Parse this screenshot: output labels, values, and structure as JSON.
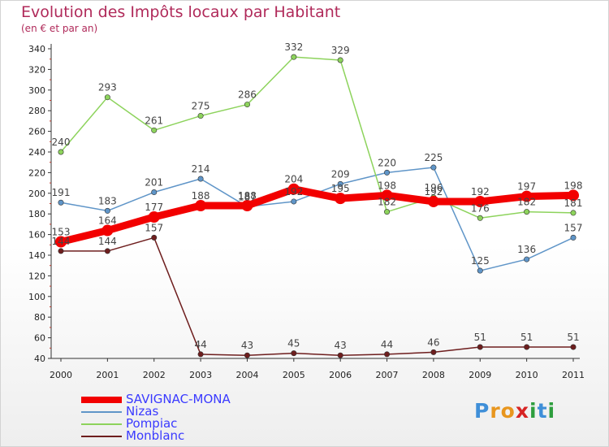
{
  "title": "Evolution des Impôts locaux par Habitant",
  "subtitle": "(en € et par an)",
  "brand": {
    "letters": [
      "P",
      "r",
      "o",
      "x",
      "i",
      "t",
      "i"
    ],
    "colors": [
      "#3f8fd8",
      "#e8961e",
      "#e8961e",
      "#d72424",
      "#2e9e3e",
      "#3f8fd8",
      "#2e9e3e"
    ]
  },
  "chart_data": {
    "type": "line",
    "title": "Evolution des Impôts locaux par Habitant",
    "subtitle": "(en € et par an)",
    "xlabel": "",
    "ylabel": "",
    "x": [
      "2000",
      "2001",
      "2002",
      "2003",
      "2004",
      "2005",
      "2006",
      "2007",
      "2008",
      "2009",
      "2010",
      "2011"
    ],
    "ylim": [
      40,
      340
    ],
    "yticks": [
      40,
      60,
      80,
      100,
      120,
      140,
      160,
      180,
      200,
      220,
      240,
      260,
      280,
      300,
      320,
      340
    ],
    "grid": false,
    "legend": "bottom-left",
    "series": [
      {
        "name": "SAVIGNAC-MONA",
        "color": "#f20000",
        "values": [
          153,
          164,
          177,
          188,
          188,
          204,
          195,
          198,
          192,
          192,
          197,
          198
        ],
        "labels": [
          "153",
          "164",
          "177",
          "188",
          "188",
          "204",
          "195",
          "198",
          "192",
          "192",
          "197",
          "198"
        ]
      },
      {
        "name": "Nizas",
        "color": "#5f95c8",
        "values": [
          191,
          183,
          201,
          214,
          187,
          192,
          209,
          220,
          225,
          125,
          136,
          157
        ],
        "labels": [
          "191",
          "183",
          "201",
          "214",
          "187",
          "192",
          "209",
          "220",
          "225",
          "125",
          "136",
          "157"
        ]
      },
      {
        "name": "Pompiac",
        "color": "#8dd35c",
        "values": [
          240,
          293,
          261,
          275,
          286,
          332,
          329,
          182,
          196,
          176,
          182,
          181
        ],
        "labels": [
          "240",
          "293",
          "261",
          "275",
          "286",
          "332",
          "329",
          "182",
          "196",
          "176",
          "182",
          "181"
        ]
      },
      {
        "name": "Monblanc",
        "color": "#6e1e1e",
        "values": [
          144,
          144,
          157,
          44,
          43,
          45,
          43,
          44,
          46,
          51,
          51,
          51
        ],
        "labels": [
          "144",
          "144",
          "157",
          "44",
          "43",
          "45",
          "43",
          "44",
          "46",
          "51",
          "51",
          "51"
        ]
      }
    ]
  }
}
